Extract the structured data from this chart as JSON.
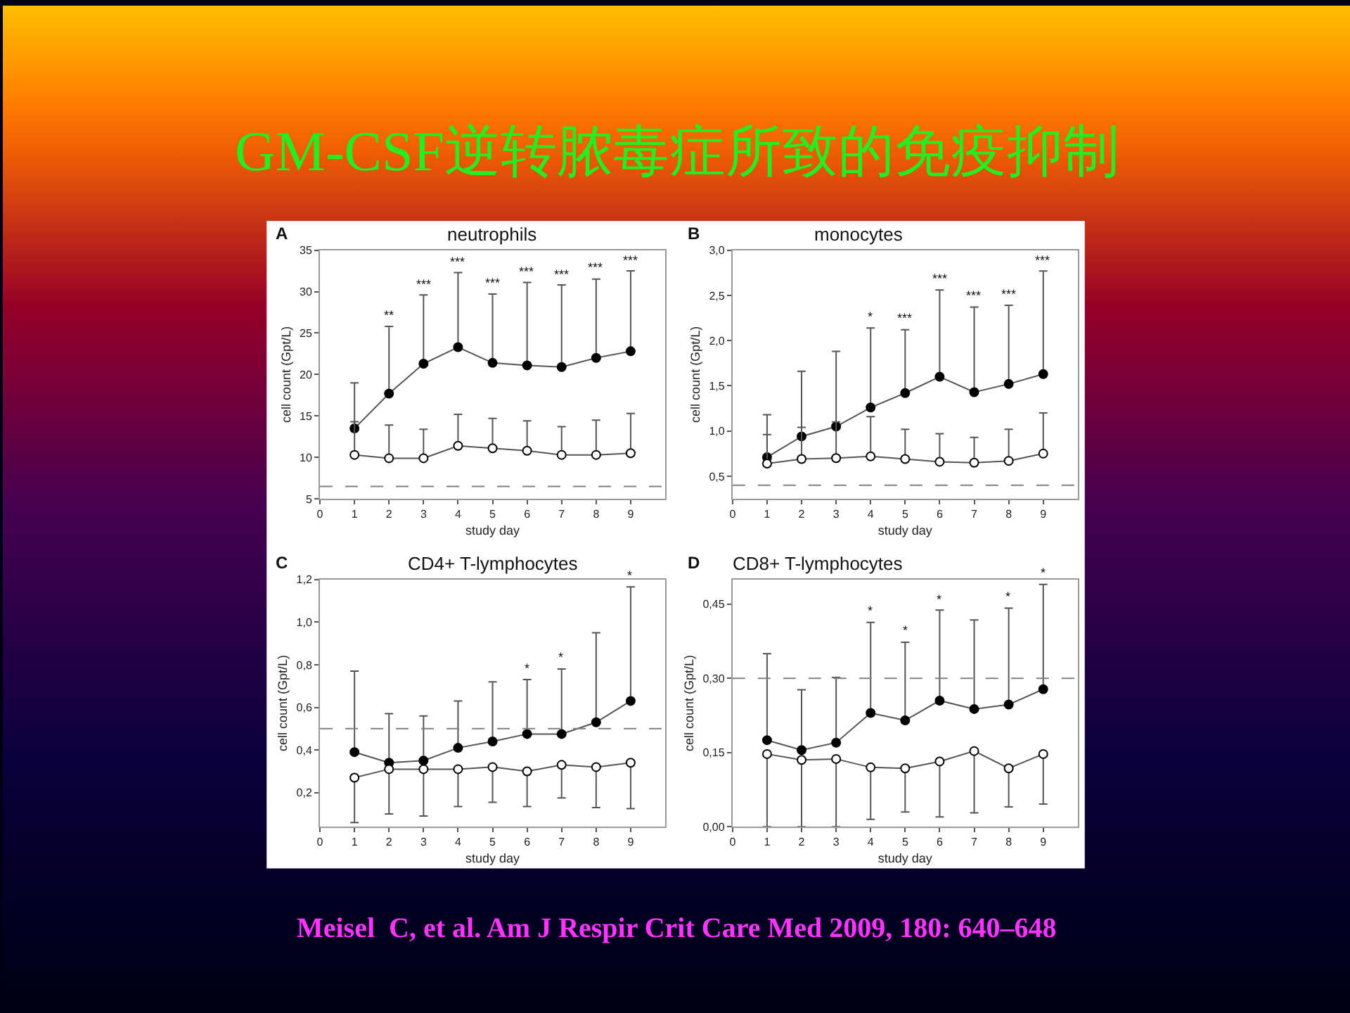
{
  "chart_data": [
    {
      "type": "other",
      "title": "GM-CSF逆转脓毒症所致的免疫抑制",
      "annotations": [
        "Meisel  C, et al. Am J Respir Crit Care Med 2009, 180: 640–648"
      ]
    },
    {
      "type": "line",
      "title": "neutrophils",
      "xlabel": "study day",
      "ylabel": "cell count (Gpt/L)",
      "x": [
        1,
        2,
        3,
        4,
        5,
        6,
        7,
        8,
        9
      ],
      "xlim": [
        0,
        10
      ],
      "xticks": [
        0,
        1,
        2,
        3,
        4,
        5,
        6,
        7,
        8,
        9
      ],
      "ylim": [
        5,
        35
      ],
      "yticks": [
        5,
        10,
        15,
        20,
        25,
        30,
        35
      ],
      "marker": "circle",
      "line_style": "solid",
      "series": [
        {
          "color": "#000000",
          "values": [
            13.5,
            17.7,
            21.3,
            23.3,
            21.4,
            21.1,
            20.9,
            22.0,
            22.8
          ],
          "errors": [
            [
              13.5,
              19.0
            ],
            [
              17.7,
              25.8
            ],
            [
              21.3,
              29.6
            ],
            [
              23.3,
              32.3
            ],
            [
              21.4,
              29.7
            ],
            [
              21.1,
              31.1
            ],
            [
              20.9,
              30.8
            ],
            [
              22.0,
              31.5
            ],
            [
              22.8,
              32.5
            ]
          ]
        },
        {
          "color": "#ffffff",
          "values": [
            10.3,
            9.9,
            9.9,
            11.4,
            11.1,
            10.8,
            10.3,
            10.3,
            10.5
          ],
          "errors": [
            [
              10.3,
              14.3
            ],
            [
              9.9,
              13.9
            ],
            [
              9.9,
              13.4
            ],
            [
              11.4,
              15.2
            ],
            [
              11.1,
              14.7
            ],
            [
              10.8,
              14.4
            ],
            [
              10.3,
              13.7
            ],
            [
              10.3,
              14.5
            ],
            [
              10.5,
              15.3
            ]
          ]
        }
      ],
      "ref_lines": [
        {
          "axis": "y",
          "value": 6.5,
          "color": "#808080",
          "line_style": "dashed"
        }
      ],
      "annotations": [
        "A",
        {
          "text": "**",
          "x": 2,
          "y": 25.8
        },
        {
          "text": "***",
          "x": 3,
          "y": 29.6
        },
        {
          "text": "***",
          "x": 4,
          "y": 32.3
        },
        {
          "text": "***",
          "x": 5,
          "y": 29.7
        },
        {
          "text": "***",
          "x": 6,
          "y": 31.1
        },
        {
          "text": "***",
          "x": 7,
          "y": 30.8
        },
        {
          "text": "***",
          "x": 8,
          "y": 31.5
        },
        {
          "text": "***",
          "x": 9,
          "y": 32.5
        }
      ]
    },
    {
      "type": "line",
      "title": "monocytes",
      "xlabel": "study day",
      "ylabel": "cell count (Gpt/L)",
      "x": [
        1,
        2,
        3,
        4,
        5,
        6,
        7,
        8,
        9
      ],
      "xlim": [
        0,
        10
      ],
      "xticks": [
        0,
        1,
        2,
        3,
        4,
        5,
        6,
        7,
        8,
        9
      ],
      "ylim": [
        0.25,
        3.0
      ],
      "yticks": [
        {
          "value": 0.5,
          "label": "0,5"
        },
        {
          "value": 1.0,
          "label": "1,0"
        },
        {
          "value": 1.5,
          "label": "1,5"
        },
        {
          "value": 2.0,
          "label": "2,0"
        },
        {
          "value": 2.5,
          "label": "2,5"
        },
        {
          "value": 3.0,
          "label": "3,0"
        }
      ],
      "marker": "circle",
      "line_style": "solid",
      "series": [
        {
          "color": "#000000",
          "values": [
            0.71,
            0.94,
            1.05,
            1.26,
            1.42,
            1.6,
            1.43,
            1.52,
            1.63
          ],
          "errors": [
            [
              0.71,
              1.18
            ],
            [
              0.94,
              1.66
            ],
            [
              1.05,
              1.88
            ],
            [
              1.26,
              2.14
            ],
            [
              1.42,
              2.12
            ],
            [
              1.6,
              2.56
            ],
            [
              1.43,
              2.37
            ],
            [
              1.52,
              2.39
            ],
            [
              1.63,
              2.77
            ]
          ]
        },
        {
          "color": "#ffffff",
          "values": [
            0.64,
            0.69,
            0.7,
            0.72,
            0.69,
            0.66,
            0.65,
            0.67,
            0.75
          ],
          "errors": [
            [
              0.64,
              0.96
            ],
            [
              0.69,
              1.04
            ],
            [
              0.7,
              1.1
            ],
            [
              0.72,
              1.16
            ],
            [
              0.69,
              1.02
            ],
            [
              0.66,
              0.97
            ],
            [
              0.65,
              0.93
            ],
            [
              0.67,
              1.02
            ],
            [
              0.75,
              1.2
            ]
          ]
        }
      ],
      "ref_lines": [
        {
          "axis": "y",
          "value": 0.4,
          "color": "#808080",
          "line_style": "dashed"
        }
      ],
      "annotations": [
        "B",
        {
          "text": "*",
          "x": 4,
          "y": 2.14
        },
        {
          "text": "***",
          "x": 5,
          "y": 2.12
        },
        {
          "text": "***",
          "x": 6,
          "y": 2.56
        },
        {
          "text": "***",
          "x": 7,
          "y": 2.37
        },
        {
          "text": "***",
          "x": 8,
          "y": 2.39
        },
        {
          "text": "***",
          "x": 9,
          "y": 2.77
        }
      ]
    },
    {
      "type": "line",
      "title": "CD4+ T-lymphocytes",
      "xlabel": "study day",
      "ylabel": "cell count (Gpt/L)",
      "x": [
        1,
        2,
        3,
        4,
        5,
        6,
        7,
        8,
        9
      ],
      "xlim": [
        0,
        10
      ],
      "xticks": [
        0,
        1,
        2,
        3,
        4,
        5,
        6,
        7,
        8,
        9
      ],
      "ylim": [
        0.04,
        1.2
      ],
      "yticks": [
        {
          "value": 0.2,
          "label": "0,2"
        },
        {
          "value": 0.4,
          "label": "0,4"
        },
        {
          "value": 0.6,
          "label": "0,6"
        },
        {
          "value": 0.8,
          "label": "0,8"
        },
        {
          "value": 1.0,
          "label": "1,0"
        },
        {
          "value": 1.2,
          "label": "1,2"
        }
      ],
      "marker": "circle",
      "line_style": "solid",
      "series": [
        {
          "color": "#000000",
          "values": [
            0.39,
            0.34,
            0.35,
            0.41,
            0.44,
            0.475,
            0.475,
            0.53,
            0.63
          ],
          "errors": [
            [
              0.39,
              0.77
            ],
            [
              0.34,
              0.57
            ],
            [
              0.35,
              0.56
            ],
            [
              0.41,
              0.63
            ],
            [
              0.44,
              0.72
            ],
            [
              0.475,
              0.73
            ],
            [
              0.475,
              0.78
            ],
            [
              0.53,
              0.95
            ],
            [
              0.63,
              1.165
            ]
          ]
        },
        {
          "color": "#ffffff",
          "values": [
            0.27,
            0.31,
            0.31,
            0.31,
            0.32,
            0.3,
            0.33,
            0.32,
            0.34
          ],
          "errors": [
            [
              0.06,
              0.27
            ],
            [
              0.1,
              0.31
            ],
            [
              0.09,
              0.31
            ],
            [
              0.135,
              0.31
            ],
            [
              0.155,
              0.32
            ],
            [
              0.135,
              0.3
            ],
            [
              0.175,
              0.33
            ],
            [
              0.13,
              0.32
            ],
            [
              0.125,
              0.34
            ]
          ]
        }
      ],
      "ref_lines": [
        {
          "axis": "y",
          "value": 0.5,
          "color": "#808080",
          "line_style": "dashed"
        }
      ],
      "annotations": [
        "C",
        {
          "text": "*",
          "x": 6,
          "y": 0.73
        },
        {
          "text": "*",
          "x": 7,
          "y": 0.78
        },
        {
          "text": "*",
          "x": 9,
          "y": 1.165
        }
      ]
    },
    {
      "type": "line",
      "title": "CD8+ T-lymphocytes",
      "xlabel": "study day",
      "ylabel": "cell count (Gpt/L)",
      "x": [
        1,
        2,
        3,
        4,
        5,
        6,
        7,
        8,
        9
      ],
      "xlim": [
        0,
        10
      ],
      "xticks": [
        0,
        1,
        2,
        3,
        4,
        5,
        6,
        7,
        8,
        9
      ],
      "ylim": [
        0,
        0.5
      ],
      "yticks": [
        {
          "value": 0,
          "label": "0,00"
        },
        {
          "value": 0.15,
          "label": "0,15"
        },
        {
          "value": 0.3,
          "label": "0,30"
        },
        {
          "value": 0.45,
          "label": "0,45"
        }
      ],
      "marker": "circle",
      "line_style": "solid",
      "series": [
        {
          "color": "#000000",
          "values": [
            0.175,
            0.155,
            0.17,
            0.23,
            0.215,
            0.255,
            0.238,
            0.247,
            0.278
          ],
          "errors": [
            [
              0.175,
              0.35
            ],
            [
              0.155,
              0.277
            ],
            [
              0.17,
              0.302
            ],
            [
              0.23,
              0.413
            ],
            [
              0.215,
              0.373
            ],
            [
              0.255,
              0.438
            ],
            [
              0.238,
              0.418
            ],
            [
              0.247,
              0.442
            ],
            [
              0.278,
              0.49
            ]
          ]
        },
        {
          "color": "#ffffff",
          "values": [
            0.147,
            0.135,
            0.137,
            0.12,
            0.118,
            0.132,
            0.153,
            0.118,
            0.147
          ],
          "errors": [
            [
              0.0,
              0.147
            ],
            [
              0.0,
              0.135
            ],
            [
              0.0,
              0.137
            ],
            [
              0.015,
              0.12
            ],
            [
              0.03,
              0.118
            ],
            [
              0.02,
              0.132
            ],
            [
              0.028,
              0.153
            ],
            [
              0.04,
              0.118
            ],
            [
              0.046,
              0.147
            ]
          ]
        }
      ],
      "ref_lines": [
        {
          "axis": "y",
          "value": 0.3,
          "color": "#808080",
          "line_style": "dashed"
        }
      ],
      "annotations": [
        "D",
        {
          "text": "*",
          "x": 4,
          "y": 0.413
        },
        {
          "text": "*",
          "x": 5,
          "y": 0.373
        },
        {
          "text": "*",
          "x": 6,
          "y": 0.438
        },
        {
          "text": "*",
          "x": 8,
          "y": 0.442
        },
        {
          "text": "*",
          "x": 9,
          "y": 0.49
        }
      ]
    }
  ]
}
